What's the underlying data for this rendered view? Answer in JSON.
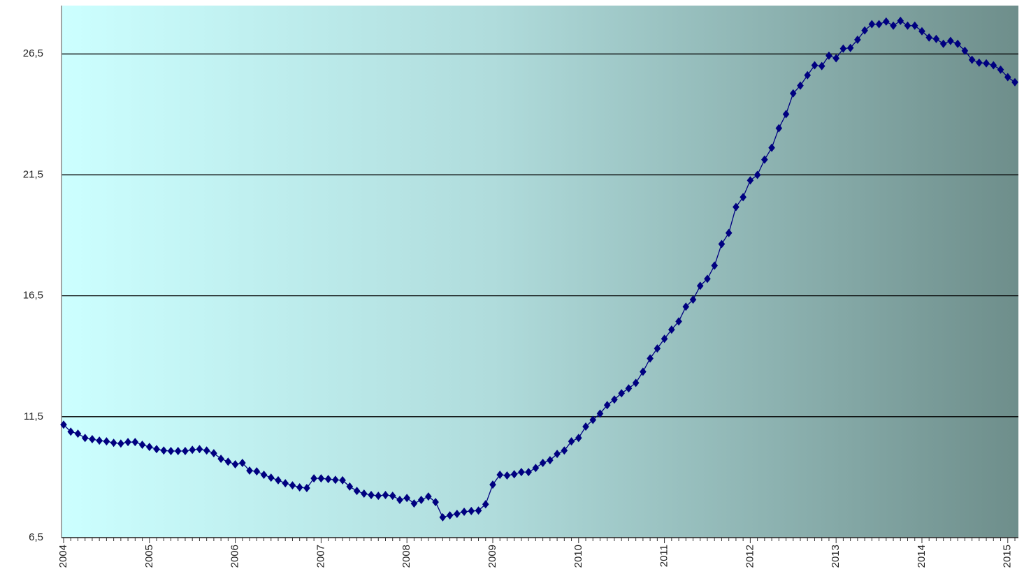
{
  "chart_data": {
    "type": "line",
    "categories": [
      "2004",
      null,
      null,
      null,
      null,
      null,
      null,
      null,
      null,
      null,
      null,
      null,
      "2005",
      null,
      null,
      null,
      null,
      null,
      null,
      null,
      null,
      null,
      null,
      null,
      "2006",
      null,
      null,
      null,
      null,
      null,
      null,
      null,
      null,
      null,
      null,
      null,
      "2007",
      null,
      null,
      null,
      null,
      null,
      null,
      null,
      null,
      null,
      null,
      null,
      "2008",
      null,
      null,
      null,
      null,
      null,
      null,
      null,
      null,
      null,
      null,
      null,
      "2009",
      null,
      null,
      null,
      null,
      null,
      null,
      null,
      null,
      null,
      null,
      null,
      "2010",
      null,
      null,
      null,
      null,
      null,
      null,
      null,
      null,
      null,
      null,
      null,
      "2011",
      null,
      null,
      null,
      null,
      null,
      null,
      null,
      null,
      null,
      null,
      null,
      "2012",
      null,
      null,
      null,
      null,
      null,
      null,
      null,
      null,
      null,
      null,
      null,
      "2013",
      null,
      null,
      null,
      null,
      null,
      null,
      null,
      null,
      null,
      null,
      null,
      "2014",
      null,
      null,
      null,
      null,
      null,
      null,
      null,
      null,
      null,
      null,
      null,
      "2015",
      null
    ],
    "series": [
      {
        "color": "#000080",
        "values": [
          11.17,
          10.88,
          10.8,
          10.62,
          10.57,
          10.51,
          10.48,
          10.42,
          10.39,
          10.45,
          10.45,
          10.34,
          10.25,
          10.16,
          10.1,
          10.08,
          10.08,
          10.08,
          10.13,
          10.16,
          10.1,
          9.99,
          9.76,
          9.64,
          9.53,
          9.59,
          9.27,
          9.24,
          9.1,
          8.98,
          8.87,
          8.75,
          8.66,
          8.58,
          8.55,
          8.95,
          8.95,
          8.92,
          8.89,
          8.87,
          8.61,
          8.43,
          8.32,
          8.26,
          8.23,
          8.26,
          8.23,
          8.06,
          8.14,
          7.91,
          8.06,
          8.2,
          7.97,
          7.34,
          7.42,
          7.48,
          7.57,
          7.6,
          7.62,
          7.88,
          8.69,
          9.1,
          9.07,
          9.12,
          9.21,
          9.21,
          9.38,
          9.59,
          9.7,
          9.96,
          10.1,
          10.48,
          10.62,
          11.09,
          11.37,
          11.63,
          11.98,
          12.21,
          12.47,
          12.67,
          12.9,
          13.36,
          13.91,
          14.32,
          14.72,
          15.1,
          15.44,
          16.05,
          16.34,
          16.91,
          17.2,
          17.75,
          18.64,
          19.1,
          20.17,
          20.58,
          21.27,
          21.5,
          22.13,
          22.62,
          23.43,
          24.01,
          24.87,
          25.19,
          25.62,
          26.03,
          26.0,
          26.43,
          26.32,
          26.72,
          26.75,
          27.09,
          27.47,
          27.73,
          27.73,
          27.84,
          27.67,
          27.87,
          27.67,
          27.67,
          27.44,
          27.18,
          27.12,
          26.92,
          27.04,
          26.92,
          26.63,
          26.26,
          26.14,
          26.11,
          26.03,
          25.85,
          25.54,
          25.33
        ]
      }
    ],
    "ylim": [
      6.5,
      28.5
    ],
    "yticks": [
      {
        "value": 6.5,
        "label": "6,5"
      },
      {
        "value": 11.5,
        "label": "11,5"
      },
      {
        "value": 16.5,
        "label": "16,5"
      },
      {
        "value": 21.5,
        "label": "21,5"
      },
      {
        "value": 26.5,
        "label": "26,5"
      }
    ],
    "grid": true
  }
}
